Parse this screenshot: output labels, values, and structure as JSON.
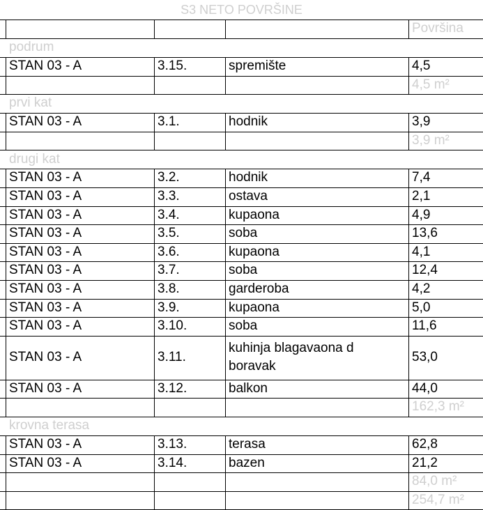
{
  "title": "S3 NETO POVRŠINE",
  "header": {
    "area_label": "Površina"
  },
  "sections": [
    {
      "name": "podrum",
      "rows": [
        [
          "STAN 03 - A",
          "3.15.",
          "spremište",
          "4,5"
        ]
      ],
      "total": "4,5 m²"
    },
    {
      "name": "prvi  kat",
      "rows": [
        [
          "STAN 03 - A",
          "3.1.",
          "hodnik",
          "3,9"
        ]
      ],
      "total": "3,9 m²"
    },
    {
      "name": "drugi kat",
      "rows": [
        [
          "STAN 03 - A",
          "3.2.",
          "hodnik",
          "7,4"
        ],
        [
          "STAN 03 - A",
          "3.3.",
          "ostava",
          "2,1"
        ],
        [
          "STAN 03 - A",
          "3.4.",
          "kupaona",
          "4,9"
        ],
        [
          "STAN 03 - A",
          "3.5.",
          "soba",
          "13,6"
        ],
        [
          "STAN 03 - A",
          "3.6.",
          "kupaona",
          "4,1"
        ],
        [
          "STAN 03 - A",
          "3.7.",
          "soba",
          "12,4"
        ],
        [
          "STAN 03 - A",
          "3.8.",
          "garderoba",
          "4,2"
        ],
        [
          "STAN 03 - A",
          "3.9.",
          "kupaona",
          "5,0"
        ],
        [
          "STAN 03 - A",
          "3.10.",
          "soba",
          "11,6"
        ],
        [
          "STAN 03 - A",
          "3.11.",
          "kuhinja blagavaona d boravak",
          "53,0"
        ],
        [
          "STAN 03 - A",
          "3.12.",
          "balkon",
          "44,0"
        ]
      ],
      "total": "162,3 m²"
    },
    {
      "name": "krovna terasa",
      "rows": [
        [
          "STAN 03 - A",
          "3.13.",
          "terasa",
          "62,8"
        ],
        [
          "STAN 03 - A",
          "3.14.",
          "bazen",
          "21,2"
        ]
      ],
      "total": "84,0 m²"
    }
  ],
  "grand_total": "254,7 m²"
}
